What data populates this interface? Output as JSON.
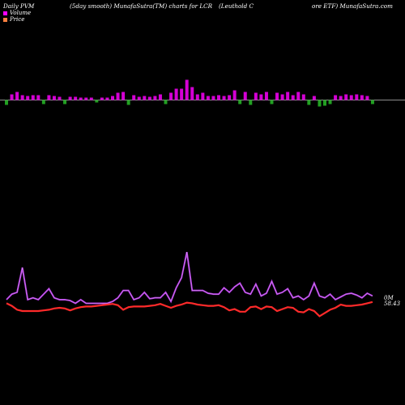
{
  "header": {
    "left": "Daily PVM",
    "middle": "(5day smooth) MunafaSutra(TM) charts for LCR",
    "right1": "(Leuthold C",
    "right2": "ore  ETF) MunafaSutra.com"
  },
  "legend": [
    {
      "label": "Volume",
      "color": "#ff00ff"
    },
    {
      "label": "Price",
      "color": "#ff8040"
    }
  ],
  "colors": {
    "up": "#d400d4",
    "down": "#22a022",
    "baseline": "#bbbbbb",
    "volume_line": "#b034e0",
    "price_line": "#ff2a2a"
  },
  "chart_data": {
    "type": "bar",
    "title": "Daily PVM (5day smooth) MunafaSutra(TM) charts for LCR",
    "series": [
      {
        "name": "Volume",
        "kind": "bar",
        "values": [
          -6,
          7,
          10,
          6,
          5,
          6,
          6,
          -5,
          6,
          5,
          4,
          -5,
          4,
          4,
          3,
          3,
          3,
          -3,
          3,
          3,
          5,
          9,
          10,
          -6,
          6,
          4,
          5,
          4,
          5,
          7,
          -5,
          9,
          14,
          14,
          25,
          16,
          7,
          9,
          5,
          5,
          6,
          5,
          6,
          12,
          -5,
          10,
          -6,
          9,
          7,
          10,
          -5,
          9,
          7,
          10,
          6,
          10,
          7,
          -6,
          5,
          -8,
          -7,
          -5,
          6,
          5,
          7,
          6,
          7,
          6,
          5,
          -5
        ],
        "directions": [
          "down",
          "up",
          "up",
          "up",
          "up",
          "up",
          "up",
          "down",
          "up",
          "up",
          "up",
          "down",
          "up",
          "up",
          "up",
          "up",
          "up",
          "down",
          "up",
          "up",
          "up",
          "up",
          "up",
          "down",
          "up",
          "up",
          "up",
          "up",
          "up",
          "up",
          "down",
          "up",
          "up",
          "up",
          "up",
          "up",
          "up",
          "up",
          "up",
          "up",
          "up",
          "up",
          "up",
          "up",
          "down",
          "up",
          "down",
          "up",
          "up",
          "up",
          "down",
          "up",
          "up",
          "up",
          "up",
          "up",
          "up",
          "down",
          "up",
          "down",
          "down",
          "down",
          "up",
          "up",
          "up",
          "up",
          "up",
          "up",
          "up",
          "down"
        ]
      },
      {
        "name": "Volume",
        "kind": "line",
        "values": [
          62,
          68,
          70,
          97,
          62,
          64,
          62,
          68,
          74,
          64,
          62,
          62,
          61,
          58,
          62,
          58,
          58,
          58,
          58,
          58,
          60,
          64,
          72,
          72,
          62,
          64,
          70,
          63,
          64,
          64,
          70,
          60,
          75,
          86,
          114,
          72,
          72,
          72,
          69,
          68,
          68,
          75,
          70,
          76,
          80,
          70,
          68,
          79,
          66,
          69,
          82,
          68,
          70,
          74,
          64,
          66,
          62,
          66,
          80,
          66,
          64,
          68,
          62,
          65,
          68,
          69,
          67,
          64,
          69,
          66
        ]
      },
      {
        "name": "Price",
        "kind": "line",
        "values": [
          58.2,
          57.8,
          57.2,
          57.0,
          57.0,
          57.0,
          57.0,
          57.1,
          57.2,
          57.4,
          57.5,
          57.4,
          57.1,
          57.4,
          57.6,
          57.7,
          57.7,
          57.8,
          57.9,
          58.0,
          58.1,
          57.9,
          57.2,
          57.6,
          57.7,
          57.7,
          57.7,
          57.8,
          57.9,
          58.1,
          57.8,
          57.5,
          57.8,
          58.0,
          58.3,
          58.2,
          58.0,
          57.9,
          57.8,
          57.8,
          57.9,
          57.6,
          57.1,
          57.3,
          56.9,
          56.9,
          57.6,
          57.7,
          57.3,
          57.7,
          57.6,
          57.0,
          57.3,
          57.6,
          57.5,
          56.9,
          56.8,
          57.3,
          57.0,
          56.2,
          56.7,
          57.2,
          57.5,
          58.0,
          57.8,
          57.8,
          57.9,
          58.0,
          58.2,
          58.4
        ]
      }
    ],
    "annotations": [
      "0M",
      "58.43"
    ]
  }
}
